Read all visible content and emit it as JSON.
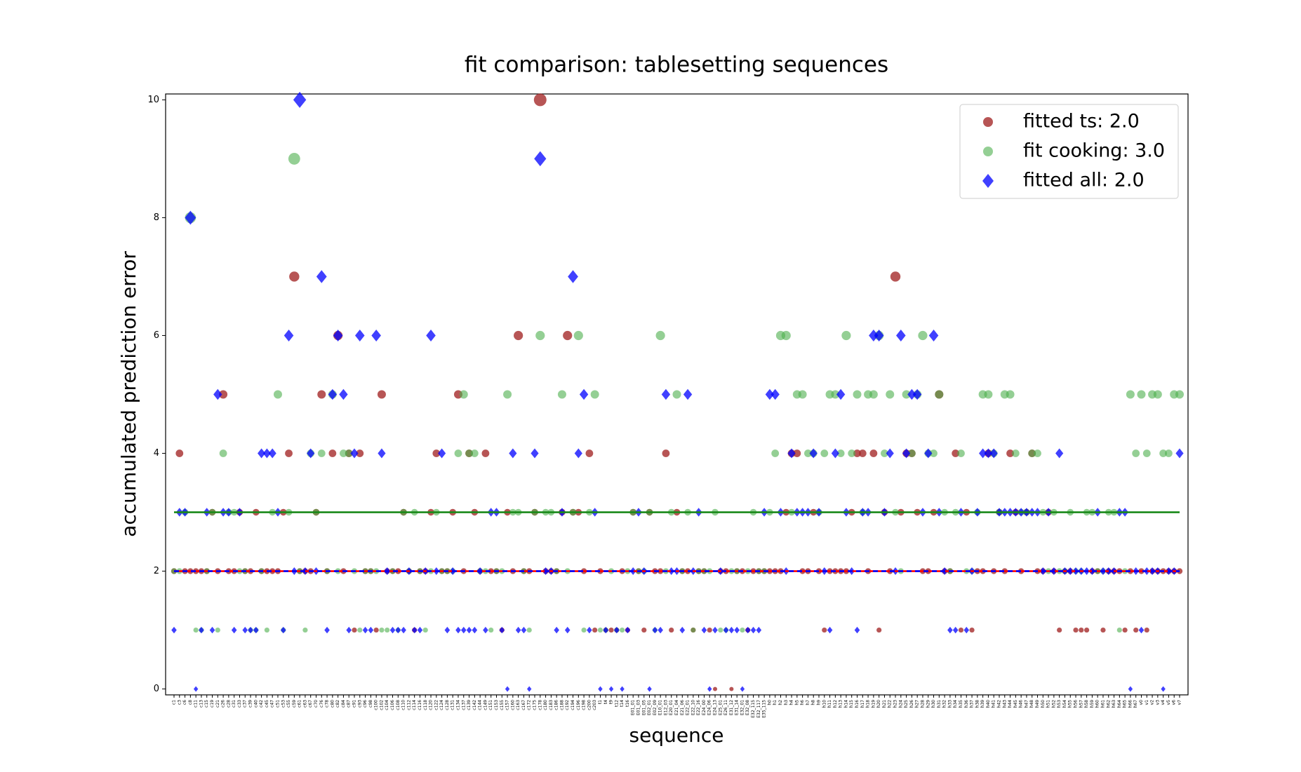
{
  "chart_data": {
    "type": "scatter",
    "title": "fit comparison: tablesetting sequences",
    "x_label": "sequence",
    "y_label": "accumulated prediction error",
    "categories": [
      "c1",
      "c3",
      "c6",
      "c8",
      "c11",
      "c13",
      "c15",
      "c19",
      "c21",
      "c26",
      "c28",
      "c31",
      "c33",
      "c37",
      "c39",
      "c40",
      "c42",
      "c45",
      "c47",
      "c51",
      "c53",
      "c55",
      "c59",
      "c61",
      "c63",
      "c67",
      "c70",
      "c76",
      "c78",
      "c80",
      "c82",
      "c84",
      "c87",
      "c91",
      "c93",
      "c96",
      "c98",
      "c100",
      "c102",
      "c104",
      "c106",
      "c108",
      "c110",
      "c112",
      "c114",
      "c116",
      "c118",
      "c120",
      "c122",
      "c124",
      "c128",
      "c131",
      "c134",
      "c137",
      "c139",
      "c142",
      "c144",
      "c149",
      "c151",
      "c153",
      "c155",
      "c157",
      "c160",
      "c163",
      "c167",
      "c172",
      "c175",
      "c178",
      "c180",
      "c183",
      "c186",
      "c188",
      "c192",
      "c194",
      "c196",
      "c198",
      "c200",
      "c203",
      "t1",
      "t4",
      "t9",
      "t12",
      "t14",
      "t16",
      "E01_01",
      "E01_03",
      "E01_05",
      "E02_01",
      "E02_09",
      "E10_01",
      "E12_03",
      "E20_01",
      "E21_04",
      "E21_06",
      "E22_01",
      "E22_10",
      "E22_16",
      "E24_00",
      "E24_06",
      "E24_13",
      "E25_01",
      "E26_11",
      "E31_12",
      "E31_14",
      "E32_01",
      "E32_08",
      "E32_115",
      "E32_117",
      "E35_115",
      "h0",
      "h1",
      "h2",
      "h3",
      "h4",
      "h5",
      "h6",
      "h7",
      "h8",
      "h9",
      "h10",
      "h11",
      "h12",
      "h13",
      "h14",
      "h15",
      "h16",
      "h17",
      "h18",
      "h19",
      "h20",
      "h21",
      "h22",
      "h23",
      "h24",
      "h25",
      "h26",
      "h27",
      "h28",
      "h29",
      "h30",
      "h31",
      "h32",
      "h33",
      "h34",
      "h35",
      "h36",
      "h37",
      "h38",
      "h39",
      "h40",
      "h41",
      "h42",
      "h43",
      "h44",
      "h45",
      "h46",
      "h47",
      "h48",
      "h49",
      "h50",
      "h51",
      "h52",
      "h53",
      "h54",
      "h55",
      "h56",
      "h57",
      "h58",
      "h59",
      "h60",
      "h61",
      "h62",
      "h63",
      "h64",
      "h65",
      "h66",
      "h67",
      "v0",
      "v1",
      "v2",
      "v3",
      "v4",
      "v5",
      "v6",
      "v7"
    ],
    "series": [
      {
        "name": "fitted ts: 2.0",
        "color": "#a52a2a",
        "marker": "circle",
        "line_value": 2.0,
        "line_color": "#ff0000",
        "line_style": "solid",
        "values": [
          2,
          4,
          2,
          2,
          2,
          2,
          2,
          3,
          2,
          5,
          2,
          2,
          3,
          2,
          2,
          3,
          2,
          2,
          2,
          2,
          3,
          4,
          7,
          2,
          2,
          2,
          3,
          5,
          2,
          4,
          6,
          2,
          4,
          1,
          4,
          2,
          2,
          1,
          5,
          2,
          2,
          2,
          3,
          2,
          1,
          2,
          2,
          3,
          4,
          2,
          2,
          3,
          5,
          2,
          4,
          3,
          2,
          4,
          2,
          2,
          1,
          3,
          2,
          6,
          2,
          2,
          3,
          10,
          2,
          2,
          2,
          3,
          6,
          3,
          3,
          2,
          4,
          1,
          2,
          1,
          1,
          1,
          2,
          1,
          3,
          2,
          1,
          3,
          2,
          2,
          4,
          1,
          3,
          2,
          2,
          1,
          2,
          2,
          1,
          0,
          2,
          2,
          0,
          2,
          2,
          1,
          2,
          2,
          2,
          2,
          2,
          2,
          3,
          4,
          4,
          2,
          2,
          3,
          2,
          1,
          2,
          2,
          2,
          2,
          3,
          4,
          4,
          2,
          4,
          1,
          3,
          2,
          7,
          3,
          4,
          4,
          3,
          2,
          2,
          3,
          5,
          2,
          2,
          4,
          1,
          3,
          1,
          2,
          2,
          4,
          2,
          3,
          2,
          4,
          3,
          2,
          3,
          4,
          2,
          2,
          3,
          2,
          1,
          2,
          2,
          1,
          1,
          1,
          2,
          2,
          1,
          2,
          2,
          2,
          1,
          2,
          1,
          2,
          1,
          2,
          2,
          2,
          2,
          2,
          2
        ]
      },
      {
        "name": "fit cooking: 3.0",
        "color": "#4caf4c",
        "marker": "circle",
        "line_value": 3.0,
        "line_color": "#1a8a1a",
        "line_style": "solid",
        "values": [
          2,
          2,
          3,
          8,
          1,
          1,
          2,
          3,
          1,
          4,
          3,
          3,
          2,
          2,
          1,
          1,
          2,
          1,
          3,
          5,
          1,
          3,
          9,
          2,
          1,
          4,
          3,
          4,
          2,
          5,
          2,
          4,
          4,
          2,
          1,
          2,
          2,
          2,
          1,
          1,
          2,
          1,
          3,
          2,
          3,
          2,
          1,
          2,
          3,
          2,
          2,
          2,
          4,
          5,
          4,
          4,
          2,
          2,
          1,
          2,
          2,
          5,
          3,
          3,
          2,
          1,
          3,
          6,
          3,
          3,
          2,
          5,
          2,
          3,
          6,
          1,
          3,
          5,
          1,
          1,
          2,
          1,
          1,
          2,
          3,
          2,
          2,
          3,
          1,
          6,
          2,
          3,
          5,
          2,
          3,
          1,
          2,
          2,
          2,
          3,
          1,
          1,
          2,
          2,
          1,
          2,
          3,
          2,
          2,
          3,
          4,
          6,
          6,
          3,
          5,
          5,
          4,
          4,
          3,
          4,
          5,
          5,
          4,
          6,
          4,
          5,
          3,
          5,
          5,
          6,
          4,
          5,
          3,
          2,
          5,
          4,
          5,
          6,
          4,
          4,
          5,
          3,
          2,
          3,
          4,
          2,
          2,
          3,
          5,
          5,
          4,
          3,
          5,
          5,
          4,
          3,
          3,
          4,
          4,
          3,
          2,
          3,
          2,
          2,
          3,
          2,
          2,
          3,
          3,
          2,
          2,
          3,
          3,
          1,
          2,
          5,
          4,
          5,
          4,
          5,
          5,
          4,
          4,
          5,
          5
        ]
      },
      {
        "name": "fitted all: 2.0",
        "color": "#0000ff",
        "marker": "diamond",
        "line_value": 2.0,
        "line_color": "#0000ff",
        "line_style": "dashed",
        "values": [
          1,
          3,
          3,
          8,
          0,
          1,
          3,
          1,
          5,
          3,
          3,
          1,
          3,
          1,
          1,
          1,
          4,
          4,
          4,
          3,
          1,
          6,
          2,
          10,
          2,
          4,
          2,
          7,
          1,
          5,
          6,
          5,
          1,
          4,
          6,
          1,
          1,
          6,
          4,
          2,
          1,
          1,
          1,
          2,
          1,
          1,
          2,
          6,
          2,
          4,
          1,
          2,
          1,
          1,
          1,
          1,
          2,
          1,
          3,
          3,
          1,
          0,
          4,
          1,
          1,
          0,
          4,
          9,
          2,
          2,
          1,
          3,
          1,
          7,
          4,
          5,
          1,
          3,
          0,
          1,
          0,
          1,
          0,
          1,
          2,
          3,
          2,
          0,
          1,
          1,
          5,
          2,
          2,
          1,
          5,
          2,
          3,
          1,
          0,
          1,
          2,
          1,
          1,
          1,
          0,
          1,
          1,
          1,
          3,
          5,
          5,
          3,
          2,
          4,
          3,
          3,
          3,
          4,
          3,
          2,
          1,
          4,
          5,
          3,
          2,
          1,
          3,
          3,
          6,
          6,
          3,
          4,
          2,
          6,
          4,
          5,
          5,
          3,
          4,
          6,
          3,
          2,
          1,
          1,
          3,
          1,
          2,
          3,
          4,
          4,
          4,
          3,
          3,
          3,
          3,
          3,
          3,
          3,
          3,
          2,
          3,
          2,
          4,
          2,
          2,
          2,
          2,
          2,
          2,
          3,
          2,
          2,
          2,
          3,
          3,
          0,
          2,
          1,
          2,
          2,
          2,
          0,
          2,
          2,
          4
        ]
      }
    ],
    "ylim": [
      -0.1,
      10.1
    ],
    "yticks": [
      0,
      2,
      4,
      6,
      8,
      10
    ],
    "legend": "upper right"
  }
}
